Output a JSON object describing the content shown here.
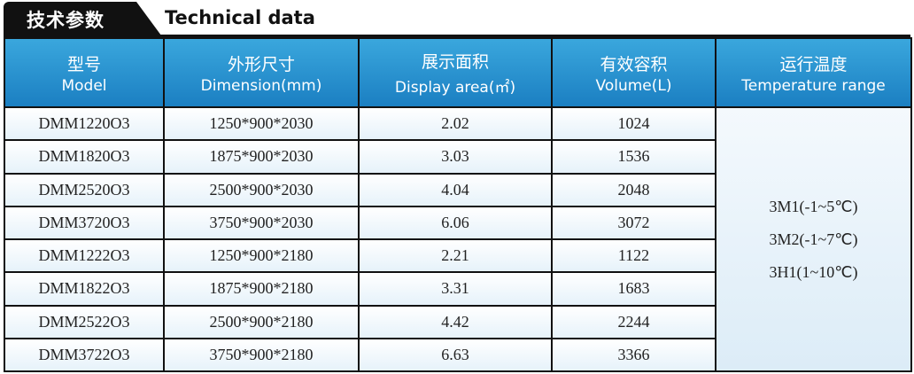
{
  "header": {
    "title_cn": "技术参数",
    "title_en": "Technical data"
  },
  "table": {
    "columns": [
      {
        "cn": "型号",
        "en": "Model"
      },
      {
        "cn": "外形尺寸",
        "en": "Dimension(mm)"
      },
      {
        "cn": "展示面积",
        "en": "Display area(㎡)"
      },
      {
        "cn": "有效容积",
        "en": "Volume(L)"
      },
      {
        "cn": "运行温度",
        "en": "Temperature range"
      }
    ],
    "rows": [
      [
        "DMM1220O3",
        "1250*900*2030",
        "2.02",
        "1024"
      ],
      [
        "DMM1820O3",
        "1875*900*2030",
        "3.03",
        "1536"
      ],
      [
        "DMM2520O3",
        "2500*900*2030",
        "4.04",
        "2048"
      ],
      [
        "DMM3720O3",
        "3750*900*2030",
        "6.06",
        "3072"
      ],
      [
        "DMM1222O3",
        "1250*900*2180",
        "2.21",
        "1122"
      ],
      [
        "DMM1822O3",
        "1875*900*2180",
        "3.31",
        "1683"
      ],
      [
        "DMM2522O3",
        "2500*900*2180",
        "4.42",
        "2244"
      ],
      [
        "DMM3722O3",
        "3750*900*2180",
        "6.63",
        "3366"
      ]
    ],
    "temperature": [
      "3M1(-1~5℃)",
      "3M2(-1~7℃)",
      "3H1(1~10℃)"
    ]
  }
}
